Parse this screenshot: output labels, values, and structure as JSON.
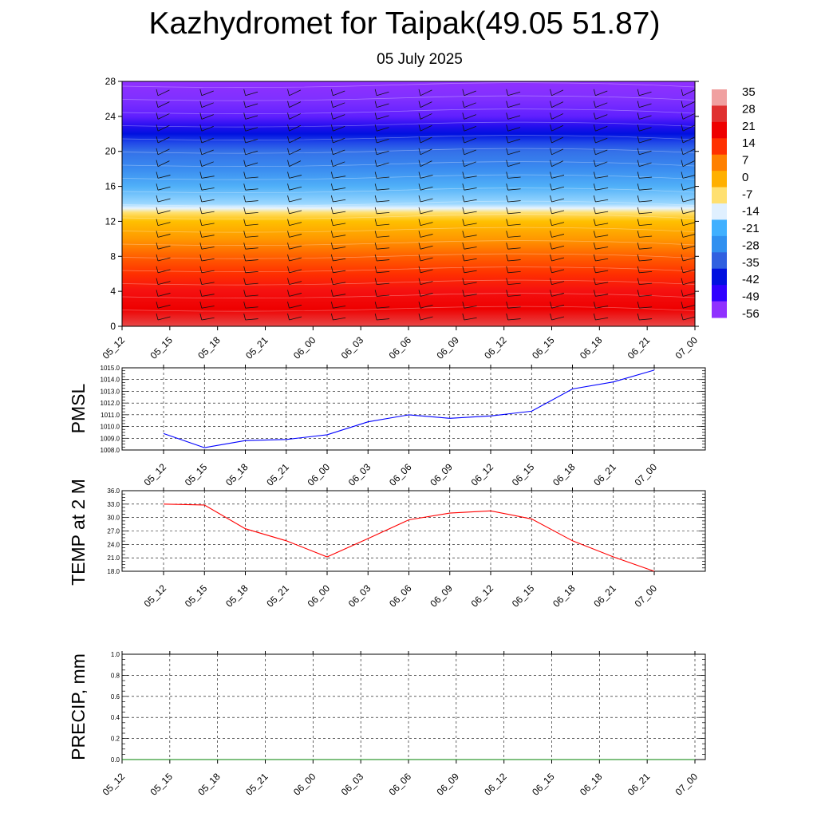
{
  "title": "Kazhydromet for Taipak(49.05 51.87)",
  "subtitle": "05 July 2025",
  "colors": {
    "pmsl_line": "#0000ff",
    "temp_line": "#ff0000",
    "precip_line": "#008000"
  },
  "chart_data": [
    {
      "type": "heatmap",
      "x_ticks": [
        "05_12",
        "05_15",
        "05_18",
        "05_21",
        "06_00",
        "06_03",
        "06_06",
        "06_09",
        "06_12",
        "06_15",
        "06_18",
        "06_21",
        "07_00"
      ],
      "y_ticks": [
        "0",
        "4",
        "8",
        "12",
        "16",
        "20",
        "24",
        "28"
      ],
      "ylim": [
        0,
        28
      ],
      "colorbar": {
        "labels": [
          "35",
          "28",
          "21",
          "14",
          "7",
          "0",
          "-7",
          "-14",
          "-21",
          "-28",
          "-35",
          "-42",
          "-49",
          "-56"
        ],
        "colors": [
          "#f0a0a0",
          "#e03030",
          "#ee0000",
          "#ff3000",
          "#ff8000",
          "#ffb000",
          "#ffe070",
          "#e0f0ff",
          "#40b0ff",
          "#3090f0",
          "#3060e0",
          "#0010e0",
          "#3000ff",
          "#9030ff"
        ]
      },
      "profile": {
        "levels": [
          0,
          2,
          4,
          6,
          8,
          10,
          12,
          13,
          13.5,
          14,
          16,
          18,
          20,
          21,
          22,
          23,
          24,
          26,
          28
        ],
        "colors": [
          "#e84848",
          "#ee0000",
          "#f51010",
          "#ff3000",
          "#ff6000",
          "#ff9800",
          "#ffc000",
          "#ffe070",
          "#e8f4ff",
          "#9cd8ff",
          "#50b0f8",
          "#3a8cf0",
          "#3470e8",
          "#2048e8",
          "#0010e0",
          "#2a10f0",
          "#6020ff",
          "#8030ff",
          "#9030ff"
        ]
      }
    },
    {
      "type": "line",
      "ylabel": "PMSL",
      "x_ticks": [
        "05_12",
        "05_15",
        "05_18",
        "05_21",
        "06_00",
        "06_03",
        "06_06",
        "06_09",
        "06_12",
        "06_15",
        "06_18",
        "06_21",
        "07_00"
      ],
      "y_ticks": [
        "1015.0",
        "1014.0",
        "1013.0",
        "1012.0",
        "1011.0",
        "1010.0",
        "1009.0",
        "1008.0"
      ],
      "ylim": [
        1008.0,
        1015.0
      ],
      "series": [
        {
          "values": [
            1009.4,
            1008.2,
            1008.8,
            1008.9,
            1009.3,
            1010.4,
            1011.0,
            1010.7,
            1010.9,
            1011.3,
            1013.2,
            1013.8,
            1014.8
          ]
        }
      ]
    },
    {
      "type": "line",
      "ylabel": "TEMP at 2 M",
      "x_ticks": [
        "05_12",
        "05_15",
        "05_18",
        "05_21",
        "06_00",
        "06_03",
        "06_06",
        "06_09",
        "06_12",
        "06_15",
        "06_18",
        "06_21",
        "07_00"
      ],
      "y_ticks": [
        "36.0",
        "33.0",
        "30.0",
        "27.0",
        "24.0",
        "21.0",
        "18.0"
      ],
      "ylim": [
        18.0,
        36.0
      ],
      "series": [
        {
          "values": [
            33.0,
            32.8,
            27.5,
            24.8,
            21.2,
            25.3,
            29.5,
            31.0,
            31.5,
            29.7,
            24.8,
            21.2,
            18.0
          ]
        }
      ]
    },
    {
      "type": "line",
      "ylabel": "PRECIP, mm",
      "x_ticks": [
        "05_12",
        "05_15",
        "05_18",
        "05_21",
        "06_00",
        "06_03",
        "06_06",
        "06_09",
        "06_12",
        "06_15",
        "06_18",
        "06_21",
        "07_00"
      ],
      "y_ticks": [
        "1.0",
        "0.8",
        "0.6",
        "0.4",
        "0.2",
        "0.0"
      ],
      "ylim": [
        0.0,
        1.0
      ],
      "series": [
        {
          "values": [
            0,
            0,
            0,
            0,
            0,
            0,
            0,
            0,
            0,
            0,
            0,
            0,
            0
          ]
        }
      ]
    }
  ]
}
